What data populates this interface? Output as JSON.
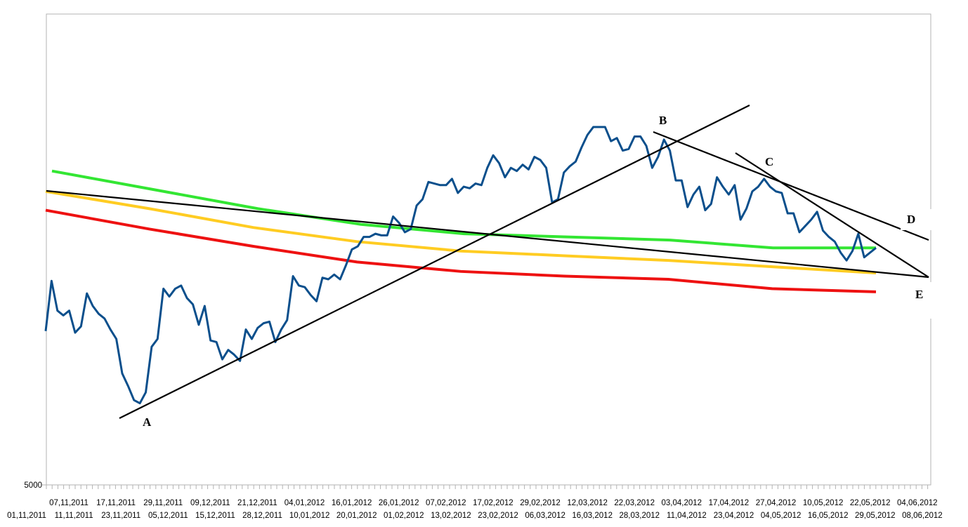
{
  "chart_data": {
    "type": "line",
    "title": "",
    "xlabel": "",
    "ylabel": "",
    "ylim": [
      5000,
      8000
    ],
    "y_tick_labels": [
      "5000"
    ],
    "grid": false,
    "x_tick_labels": [
      "01,11,2011",
      "07,11,2011",
      "11,11,2011",
      "17,11,2011",
      "23,11,2011",
      "29,11,2011",
      "05,12,2011",
      "09,12,2011",
      "15,12,2011",
      "21,12,2011",
      "28,12,2011",
      "04,01,2012",
      "10,01,2012",
      "16,01,2012",
      "20,01,2012",
      "26,01,2012",
      "01,02,2012",
      "07,02,2012",
      "13,02,2012",
      "17,02,2012",
      "23,02,2012",
      "29,02,2012",
      "06,03,2012",
      "12,03,2012",
      "16,03,2012",
      "22,03,2012",
      "28,03,2012",
      "03,04,2012",
      "11,04,2012",
      "17,04,2012",
      "23,04,2012",
      "27,04,2012",
      "04,05,2012",
      "10,05,2012",
      "16,05,2012",
      "22,05,2012",
      "29,05,2012",
      "04,06,2012",
      "08,06,2012"
    ],
    "series": [
      {
        "color": "#0b4f8c",
        "values": [
          5980,
          6300,
          6110,
          6080,
          6110,
          5970,
          6010,
          6220,
          6140,
          6090,
          6060,
          5990,
          5930,
          5710,
          5630,
          5540,
          5520,
          5590,
          5880,
          5930,
          6250,
          6200,
          6250,
          6270,
          6190,
          6150,
          6020,
          6140,
          5920,
          5910,
          5800,
          5860,
          5830,
          5790,
          5990,
          5930,
          6000,
          6030,
          6040,
          5910,
          5990,
          6050,
          6330,
          6270,
          6260,
          6210,
          6170,
          6320,
          6310,
          6340,
          6310,
          6400,
          6500,
          6520,
          6580,
          6580,
          6600,
          6590,
          6590,
          6710,
          6670,
          6610,
          6630,
          6780,
          6820,
          6930,
          6920,
          6910,
          6910,
          6950,
          6860,
          6900,
          6890,
          6920,
          6910,
          7020,
          7100,
          7050,
          6960,
          7020,
          7000,
          7040,
          7010,
          7090,
          7070,
          7020,
          6800,
          6820,
          6990,
          7030,
          7060,
          7150,
          7230,
          7280,
          7280,
          7280,
          7190,
          7210,
          7130,
          7140,
          7220,
          7220,
          7160,
          7020,
          7090,
          7200,
          7130,
          6940,
          6940,
          6770,
          6850,
          6900,
          6750,
          6790,
          6960,
          6900,
          6850,
          6910,
          6690,
          6760,
          6870,
          6900,
          6950,
          6900,
          6870,
          6860,
          6730,
          6730,
          6610,
          6650,
          6690,
          6740,
          6620,
          6580,
          6550,
          6480,
          6430,
          6490,
          6600,
          6450,
          6480,
          6510
        ]
      },
      {
        "color": "#33e633",
        "values": [
          7000,
          6880,
          6760,
          6660,
          6600,
          6580,
          6560,
          6510,
          6510
        ]
      },
      {
        "color": "#ffcc22",
        "values": [
          6870,
          6760,
          6640,
          6550,
          6490,
          6460,
          6430,
          6390,
          6350
        ]
      },
      {
        "color": "#ee1111",
        "values": [
          6750,
          6630,
          6520,
          6420,
          6360,
          6330,
          6310,
          6250,
          6230
        ]
      }
    ],
    "annotations": [
      "A",
      "B",
      "C",
      "D",
      "E"
    ],
    "trendline_color": "#000000"
  }
}
